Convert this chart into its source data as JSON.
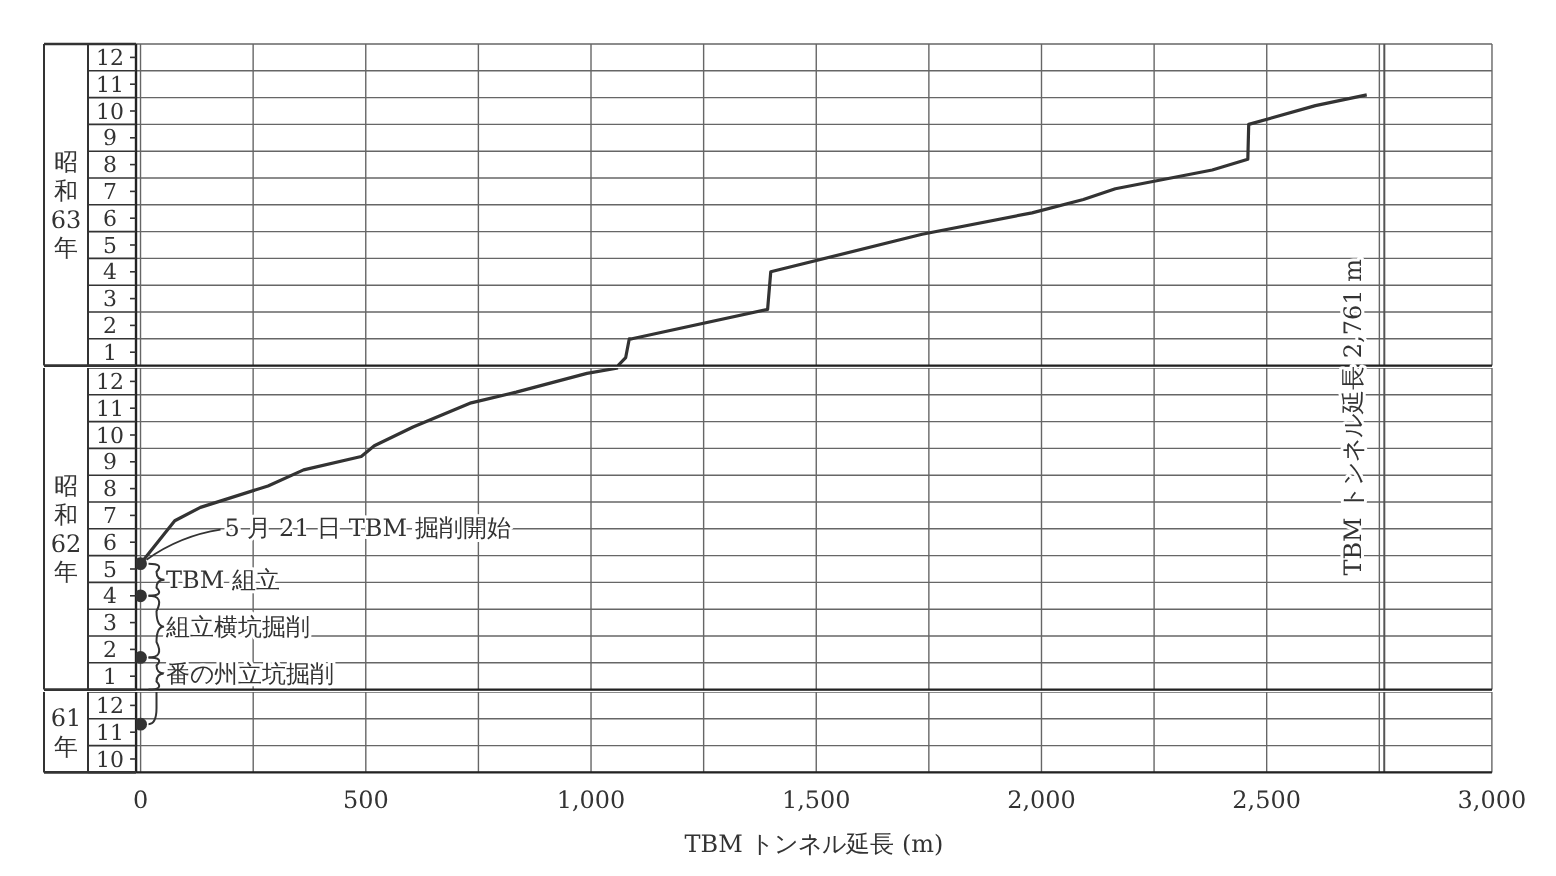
{
  "chart_data": [
    {
      "type": "line",
      "ylabel": "昭和63年",
      "tick_labels": "y",
      "grid": true,
      "xlim": [
        -10,
        3000
      ],
      "xticks": [
        0,
        250,
        500,
        750,
        1000,
        1250,
        1500,
        1750,
        2000,
        2250,
        2500,
        2750,
        3000
      ],
      "ylim": [
        0.5,
        12.5
      ],
      "yticks": [
        {
          "value": 0.5,
          "label": null
        },
        1,
        {
          "value": 1.5,
          "label": null
        },
        2,
        {
          "value": 2.5,
          "label": null
        },
        3,
        {
          "value": 3.5,
          "label": null
        },
        4,
        {
          "value": 4.5,
          "label": null
        },
        5,
        {
          "value": 5.5,
          "label": null
        },
        6,
        {
          "value": 6.5,
          "label": null
        },
        7,
        {
          "value": 7.5,
          "label": null
        },
        8,
        {
          "value": 8.5,
          "label": null
        },
        9,
        {
          "value": 9.5,
          "label": null
        },
        10,
        {
          "value": 10.5,
          "label": null
        },
        11,
        {
          "value": 11.5,
          "label": null
        },
        12,
        {
          "value": 12.5,
          "label": null
        }
      ],
      "series": [
        {
          "color": "#333333",
          "x": [
            1060,
            1077,
            1085,
            1091,
            1392,
            1399,
            1735,
            1979,
            2093,
            2164,
            2379,
            2458,
            2460,
            2608,
            2722
          ],
          "values": [
            0.5,
            0.8,
            1.5,
            1.5,
            2.6,
            4.0,
            5.4,
            6.2,
            6.7,
            7.1,
            7.8,
            8.2,
            9.5,
            10.2,
            10.6
          ]
        }
      ],
      "ref_lines": [
        {
          "axis": "x",
          "value": 2761,
          "label": "TBM トンネル延長 2,761 m",
          "color": "#555555"
        }
      ]
    },
    {
      "type": "line",
      "ylabel": "昭和62年",
      "tick_labels": "y",
      "grid": true,
      "xlim": [
        -10,
        3000
      ],
      "xticks": [
        0,
        250,
        500,
        750,
        1000,
        1250,
        1500,
        1750,
        2000,
        2250,
        2500,
        2750,
        3000
      ],
      "ylim": [
        0.5,
        12.5
      ],
      "yticks": [
        {
          "value": 0.5,
          "label": null
        },
        1,
        {
          "value": 1.5,
          "label": null
        },
        2,
        {
          "value": 2.5,
          "label": null
        },
        3,
        {
          "value": 3.5,
          "label": null
        },
        4,
        {
          "value": 4.5,
          "label": null
        },
        5,
        {
          "value": 5.5,
          "label": null
        },
        6,
        {
          "value": 6.5,
          "label": null
        },
        7,
        {
          "value": 7.5,
          "label": null
        },
        8,
        {
          "value": 8.5,
          "label": null
        },
        9,
        {
          "value": 9.5,
          "label": null
        },
        10,
        {
          "value": 10.5,
          "label": null
        },
        11,
        {
          "value": 11.5,
          "label": null
        },
        12,
        {
          "value": 12.5,
          "label": null
        }
      ],
      "series": [
        {
          "color": "#333333",
          "x": [
            0,
            76,
            133,
            283,
            362,
            490,
            519,
            605,
            734,
            834,
            991,
            1060
          ],
          "values": [
            5.2,
            6.8,
            7.3,
            8.1,
            8.7,
            9.2,
            9.6,
            10.3,
            11.2,
            11.6,
            12.3,
            12.5
          ]
        },
        {
          "type": "scatter",
          "color": "#333333",
          "marker": "circle",
          "x": [
            0,
            0,
            0
          ],
          "values": [
            1.7,
            4.0,
            5.2
          ]
        }
      ],
      "ref_lines": [
        {
          "axis": "x",
          "value": 2761,
          "color": "#555555"
        }
      ],
      "annotations": [
        {
          "text": "5 月 21 日 TBM 掘削開始",
          "x": 0,
          "y": 5.2
        },
        "TBM 組立",
        "組立横坑掘削",
        "番の州立坑掘削"
      ]
    },
    {
      "type": "scatter",
      "ylabel": "61年",
      "xlabel": "TBM トンネル延長 (m)",
      "grid": true,
      "marker": "circle",
      "xlim": [
        -10,
        3000
      ],
      "xticks": [
        0,
        {
          "value": 250,
          "label": null
        },
        500,
        {
          "value": 750,
          "label": null
        },
        {
          "value": 1000,
          "label": "1,000"
        },
        {
          "value": 1250,
          "label": null
        },
        {
          "value": 1500,
          "label": "1,500"
        },
        {
          "value": 1750,
          "label": null
        },
        {
          "value": 2000,
          "label": "2,000"
        },
        {
          "value": 2250,
          "label": null
        },
        {
          "value": 2500,
          "label": "2,500"
        },
        {
          "value": 2750,
          "label": null
        },
        {
          "value": 3000,
          "label": "3,000"
        }
      ],
      "ylim": [
        9.5,
        12.5
      ],
      "yticks": [
        {
          "value": 9.5,
          "label": null
        },
        10,
        {
          "value": 10.5,
          "label": null
        },
        11,
        {
          "value": 11.5,
          "label": null
        },
        12,
        {
          "value": 12.5,
          "label": null
        }
      ],
      "series": [
        {
          "color": "#333333",
          "x": [
            0
          ],
          "values": [
            11.3
          ]
        }
      ],
      "ref_lines": [
        {
          "axis": "x",
          "value": 2761,
          "color": "#555555"
        }
      ]
    }
  ]
}
